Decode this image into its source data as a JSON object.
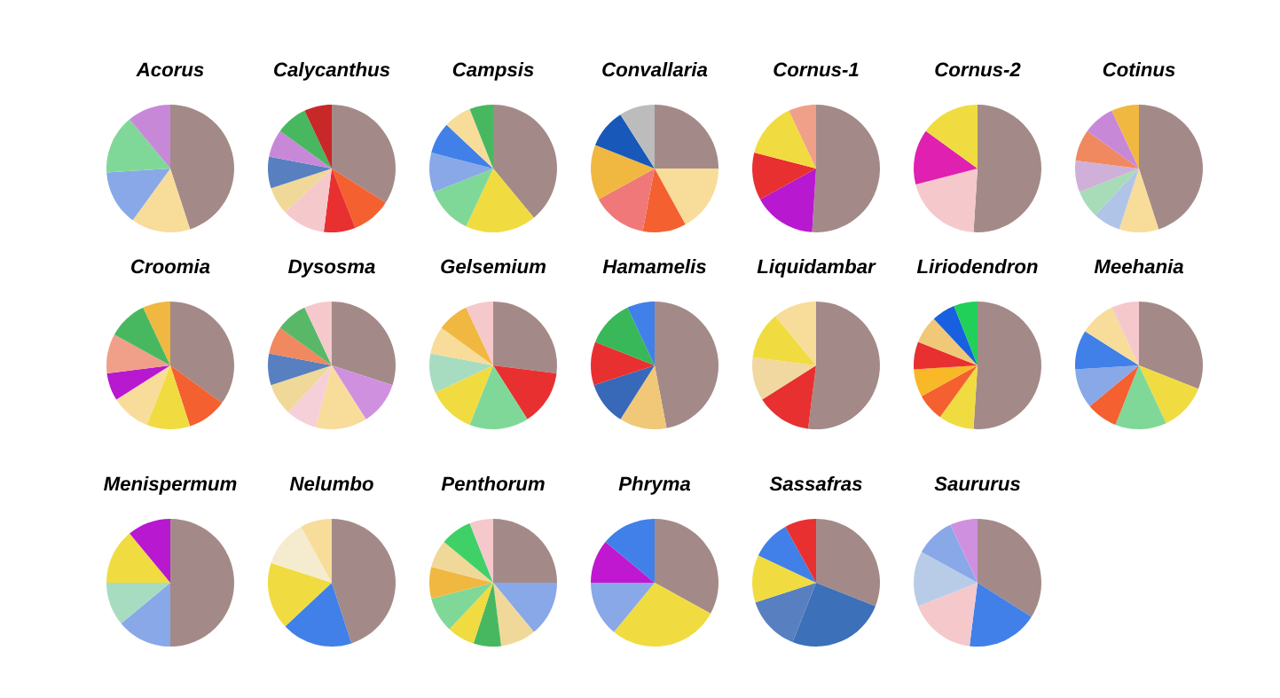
{
  "chart_data": [
    {
      "type": "pie",
      "title": "Acorus",
      "categories": [
        null,
        null,
        null,
        null,
        null
      ],
      "values": [
        45,
        15,
        14,
        15,
        11
      ],
      "colors": [
        "#a38a88",
        "#f8dc9a",
        "#88a8e8",
        "#80d898",
        "#c888d8"
      ]
    },
    {
      "type": "pie",
      "title": "Calycanthus",
      "categories": [
        null,
        null,
        null,
        null,
        null,
        null,
        null,
        null,
        null
      ],
      "values": [
        34,
        10,
        8,
        11,
        7,
        8,
        7,
        8,
        7
      ],
      "colors": [
        "#a38a88",
        "#f56030",
        "#e83030",
        "#f5c8cc",
        "#f0d898",
        "#5880c0",
        "#c888d8",
        "#48b860",
        "#c82828"
      ]
    },
    {
      "type": "pie",
      "title": "Campsis",
      "categories": [
        null,
        null,
        null,
        null,
        null,
        null,
        null
      ],
      "values": [
        39,
        18,
        12,
        10,
        8,
        7,
        6
      ],
      "colors": [
        "#a38a88",
        "#f0dc40",
        "#80d898",
        "#88a8e8",
        "#4080e8",
        "#f8dc9a",
        "#48b860"
      ]
    },
    {
      "type": "pie",
      "title": "Convallaria",
      "categories": [
        null,
        null,
        null,
        null,
        null,
        null,
        null
      ],
      "values": [
        25,
        17,
        11,
        14,
        14,
        10,
        9
      ],
      "colors": [
        "#a38a88",
        "#f8dc9a",
        "#f56030",
        "#f07878",
        "#f0b840",
        "#1858b8",
        "#bcbcbc"
      ]
    },
    {
      "type": "pie",
      "title": "Cornus-1",
      "categories": [
        null,
        null,
        null,
        null,
        null
      ],
      "values": [
        51,
        16,
        12,
        14,
        7
      ],
      "colors": [
        "#a38a88",
        "#b818d0",
        "#e83030",
        "#f0dc40",
        "#f0a088"
      ]
    },
    {
      "type": "pie",
      "title": "Cornus-2",
      "categories": [
        null,
        null,
        null,
        null
      ],
      "values": [
        51,
        20,
        14,
        15
      ],
      "colors": [
        "#a38a88",
        "#f5c8cc",
        "#e020b0",
        "#f0dc40"
      ]
    },
    {
      "type": "pie",
      "title": "Cotinus",
      "categories": [
        null,
        null,
        null,
        null,
        null,
        null,
        null,
        null
      ],
      "values": [
        45,
        10,
        7,
        7,
        8,
        8,
        8,
        7
      ],
      "colors": [
        "#a38a88",
        "#f8dc9a",
        "#b0c4e8",
        "#a8dcb8",
        "#d0b0d8",
        "#f08860",
        "#c888d8",
        "#f0b840"
      ]
    },
    {
      "type": "pie",
      "title": "Croomia",
      "categories": [
        null,
        null,
        null,
        null,
        null,
        null,
        null,
        null
      ],
      "values": [
        35,
        10,
        11,
        10,
        7,
        10,
        10,
        7
      ],
      "colors": [
        "#a38a88",
        "#f56030",
        "#f0dc40",
        "#f8dc9a",
        "#b818d0",
        "#f0a088",
        "#48b860",
        "#f0b840"
      ]
    },
    {
      "type": "pie",
      "title": "Dysosma",
      "categories": [
        null,
        null,
        null,
        null,
        null,
        null,
        null,
        null,
        null
      ],
      "values": [
        30,
        11,
        13,
        8,
        8,
        8,
        7,
        8,
        7
      ],
      "colors": [
        "#a38a88",
        "#d090e0",
        "#f8dc9a",
        "#f5d0d8",
        "#f0d898",
        "#5880c0",
        "#f08860",
        "#58b868",
        "#f5c8cc"
      ]
    },
    {
      "type": "pie",
      "title": "Gelsemium",
      "categories": [
        null,
        null,
        null,
        null,
        null,
        null,
        null,
        null
      ],
      "values": [
        27,
        14,
        15,
        12,
        10,
        7,
        8,
        7
      ],
      "colors": [
        "#a38a88",
        "#e83030",
        "#80d898",
        "#f0dc40",
        "#a8dcc0",
        "#f8dc9a",
        "#f0b840",
        "#f5c8cc"
      ]
    },
    {
      "type": "pie",
      "title": "Hamamelis",
      "categories": [
        null,
        null,
        null,
        null,
        null,
        null
      ],
      "values": [
        47,
        12,
        11,
        11,
        12,
        7
      ],
      "colors": [
        "#a38a88",
        "#f0c878",
        "#3868b8",
        "#e83030",
        "#38b858",
        "#4080e8"
      ]
    },
    {
      "type": "pie",
      "title": "Liquidambar",
      "categories": [
        null,
        null,
        null,
        null,
        null
      ],
      "values": [
        52,
        14,
        11,
        12,
        11
      ],
      "colors": [
        "#a38a88",
        "#e83030",
        "#f0d8a0",
        "#f0dc40",
        "#f8dc9a"
      ]
    },
    {
      "type": "pie",
      "title": "Liriodendron",
      "categories": [
        null,
        null,
        null,
        null,
        null,
        null,
        null,
        null
      ],
      "values": [
        51,
        9,
        7,
        7,
        7,
        7,
        6,
        6
      ],
      "colors": [
        "#a38a88",
        "#f0dc40",
        "#f56030",
        "#f8b828",
        "#e83030",
        "#f0c878",
        "#1860e0",
        "#20d058"
      ]
    },
    {
      "type": "pie",
      "title": "Meehania",
      "categories": [
        null,
        null,
        null,
        null,
        null,
        null,
        null,
        null
      ],
      "values": [
        31,
        12,
        13,
        8,
        10,
        10,
        9,
        7
      ],
      "colors": [
        "#a38a88",
        "#f0dc40",
        "#80d898",
        "#f56030",
        "#88a8e8",
        "#4080e8",
        "#f8dc9a",
        "#f5c8cc"
      ]
    },
    {
      "type": "pie",
      "title": "Menispermum",
      "categories": [
        null,
        null,
        null,
        null,
        null
      ],
      "values": [
        50,
        14,
        11,
        14,
        11
      ],
      "colors": [
        "#a38a88",
        "#88a8e8",
        "#a8dcc0",
        "#f0dc40",
        "#b818d0"
      ]
    },
    {
      "type": "pie",
      "title": "Nelumbo",
      "categories": [
        null,
        null,
        null,
        null,
        null
      ],
      "values": [
        45,
        18,
        17,
        12,
        8
      ],
      "colors": [
        "#a38a88",
        "#4080e8",
        "#f0dc40",
        "#f5ecd0",
        "#f8dc9a"
      ]
    },
    {
      "type": "pie",
      "title": "Penthorum",
      "categories": [
        null,
        null,
        null,
        null,
        null,
        null,
        null,
        null,
        null,
        null
      ],
      "values": [
        25,
        14,
        9,
        7,
        7,
        9,
        8,
        7,
        8,
        6
      ],
      "colors": [
        "#a38a88",
        "#88a8e8",
        "#f0d898",
        "#48b860",
        "#f0dc40",
        "#80d898",
        "#f0b840",
        "#f0d898",
        "#40d068",
        "#f5c8cc"
      ]
    },
    {
      "type": "pie",
      "title": "Phryma",
      "categories": [
        null,
        null,
        null,
        null,
        null
      ],
      "values": [
        33,
        28,
        14,
        11,
        14
      ],
      "colors": [
        "#a38a88",
        "#f0dc40",
        "#88a8e8",
        "#c018d0",
        "#4080e8"
      ]
    },
    {
      "type": "pie",
      "title": "Sassafras",
      "categories": [
        null,
        null,
        null,
        null,
        null,
        null
      ],
      "values": [
        31,
        25,
        14,
        12,
        10,
        8
      ],
      "colors": [
        "#a38a88",
        "#3c70b8",
        "#5880c0",
        "#f0dc40",
        "#4080e8",
        "#e83030"
      ]
    },
    {
      "type": "pie",
      "title": "Saururus",
      "categories": [
        null,
        null,
        null,
        null,
        null,
        null
      ],
      "values": [
        34,
        18,
        17,
        14,
        10,
        7
      ],
      "colors": [
        "#a38a88",
        "#4080e8",
        "#f5c8cc",
        "#b8cce8",
        "#88a8e8",
        "#d090e0"
      ]
    }
  ]
}
